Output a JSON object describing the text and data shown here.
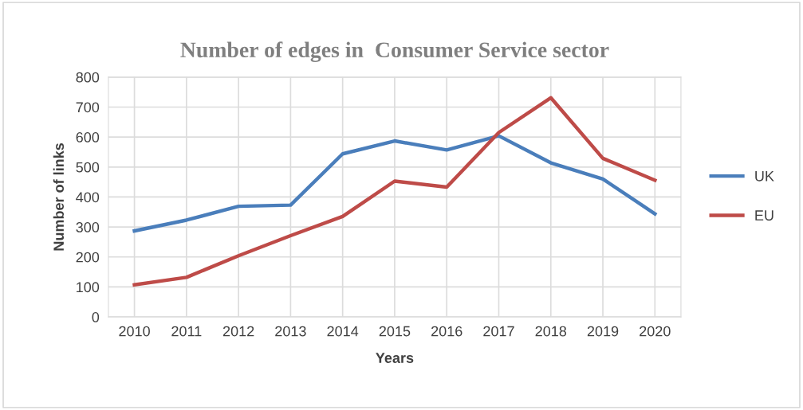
{
  "chart_data": {
    "type": "line",
    "title": "Number of edges in  Consumer Service sector",
    "xlabel": "Years",
    "ylabel": "Number of links",
    "categories": [
      "2010",
      "2011",
      "2012",
      "2013",
      "2014",
      "2015",
      "2016",
      "2017",
      "2018",
      "2019",
      "2020"
    ],
    "series": [
      {
        "name": "UK",
        "color": "#4a7ebb",
        "values": [
          287,
          323,
          369,
          373,
          544,
          587,
          557,
          604,
          514,
          460,
          344
        ]
      },
      {
        "name": "EU",
        "color": "#be4b48",
        "values": [
          107,
          132,
          204,
          271,
          335,
          453,
          433,
          615,
          731,
          529,
          456
        ]
      }
    ],
    "ylim": [
      0,
      800
    ],
    "yticks": [
      0,
      100,
      200,
      300,
      400,
      500,
      600,
      700,
      800
    ],
    "grid": true,
    "legend": "right",
    "marker": "none",
    "line_style": "solid"
  }
}
